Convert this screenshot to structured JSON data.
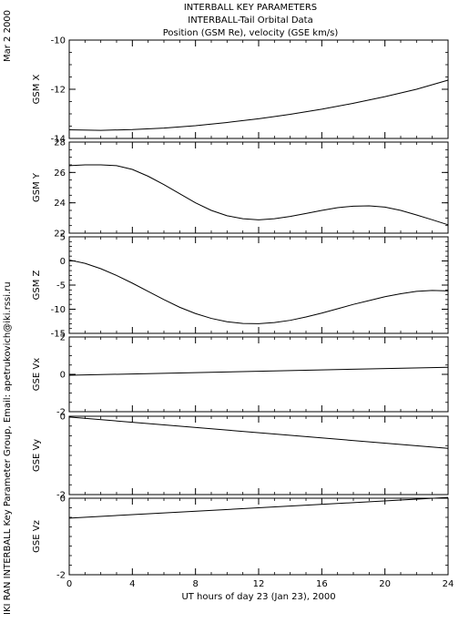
{
  "header": {
    "title1": "INTERBALL KEY PARAMETERS",
    "title2": "INTERBALL-Tail Orbital Data",
    "title3": "Position (GSM Re), velocity (GSE km/s)"
  },
  "side": {
    "date": "Mar  2 2000",
    "credit": "IKI RAN INTERBALL Key Parameter Group, Email: apetrukovich@iki.rssi.ru"
  },
  "chart_data": {
    "type": "line",
    "xlabel": "UT hours of day  23 (Jan 23), 2000",
    "xlim": [
      0,
      24
    ],
    "xticks": [
      0,
      4,
      8,
      12,
      16,
      20,
      24
    ],
    "panels": [
      {
        "label": "GSM X",
        "ylim": [
          -14,
          -10
        ],
        "yticks": [
          -14,
          -12,
          -10
        ],
        "minor": 0.5,
        "series": [
          {
            "x": [
              0,
              2,
              4,
              6,
              8,
              10,
              12,
              14,
              16,
              18,
              20,
              22,
              24
            ],
            "y": [
              -13.65,
              -13.67,
              -13.64,
              -13.58,
              -13.48,
              -13.35,
              -13.2,
              -13.02,
              -12.81,
              -12.57,
              -12.3,
              -12.0,
              -11.63
            ]
          }
        ]
      },
      {
        "label": "GSM Y",
        "ylim": [
          22,
          28
        ],
        "yticks": [
          22,
          24,
          26,
          28
        ],
        "minor": 0.5,
        "series": [
          {
            "x": [
              0,
              1,
              2,
              3,
              4,
              5,
              6,
              7,
              8,
              9,
              10,
              11,
              12,
              13,
              14,
              15,
              16,
              17,
              18,
              19,
              20,
              21,
              22,
              23,
              24
            ],
            "y": [
              26.45,
              26.5,
              26.5,
              26.45,
              26.2,
              25.75,
              25.2,
              24.6,
              24.0,
              23.5,
              23.15,
              22.95,
              22.88,
              22.95,
              23.1,
              23.3,
              23.5,
              23.68,
              23.78,
              23.8,
              23.72,
              23.5,
              23.2,
              22.88,
              22.55
            ]
          }
        ]
      },
      {
        "label": "GSM Z",
        "ylim": [
          -15,
          5
        ],
        "yticks": [
          -15,
          -10,
          -5,
          0,
          5
        ],
        "minor": 1,
        "series": [
          {
            "x": [
              0,
              1,
              2,
              3,
              4,
              5,
              6,
              7,
              8,
              9,
              10,
              11,
              12,
              13,
              14,
              15,
              16,
              17,
              18,
              19,
              20,
              21,
              22,
              23,
              24
            ],
            "y": [
              0.2,
              -0.5,
              -1.6,
              -3.0,
              -4.6,
              -6.3,
              -8.0,
              -9.6,
              -10.9,
              -11.9,
              -12.6,
              -12.95,
              -13.0,
              -12.75,
              -12.3,
              -11.6,
              -10.8,
              -9.9,
              -9.0,
              -8.2,
              -7.4,
              -6.8,
              -6.3,
              -6.1,
              -6.2
            ]
          }
        ]
      },
      {
        "label": "GSE Vx",
        "ylim": [
          -2,
          2
        ],
        "yticks": [
          -2,
          0,
          2
        ],
        "minor": 0.5,
        "series": [
          {
            "x": [
              0,
              24
            ],
            "y": [
              -0.05,
              0.38
            ]
          }
        ]
      },
      {
        "label": "GSE Vy",
        "ylim": [
          -2,
          0
        ],
        "yticks": [
          -2,
          0
        ],
        "minor": 0.25,
        "series": [
          {
            "x": [
              0,
              24
            ],
            "y": [
              -0.02,
              -0.82
            ]
          }
        ]
      },
      {
        "label": "GSE Vz",
        "ylim": [
          -2,
          0
        ],
        "yticks": [
          -2,
          0
        ],
        "minor": 0.25,
        "series": [
          {
            "x": [
              0,
              24
            ],
            "y": [
              -0.52,
              0.02
            ]
          }
        ]
      }
    ]
  }
}
